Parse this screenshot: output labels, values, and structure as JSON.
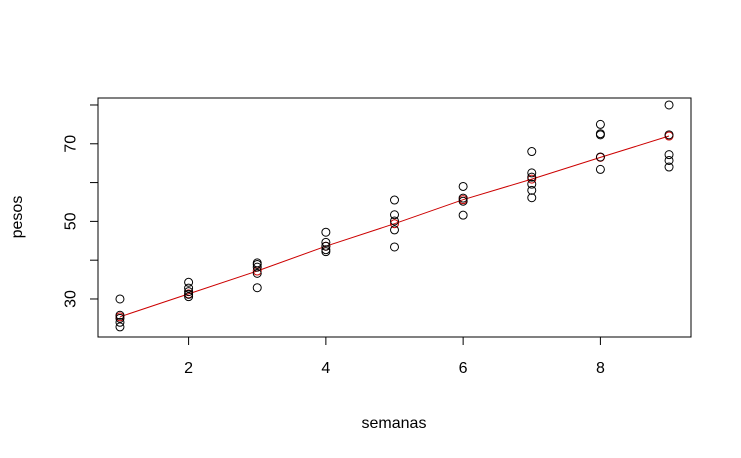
{
  "chart_data": {
    "type": "scatter",
    "title": "",
    "xlabel": "semanas",
    "ylabel": "pesos",
    "xlim": [
      0.68,
      9.32
    ],
    "ylim": [
      20.2,
      81.8
    ],
    "x_ticks": [
      2,
      4,
      6,
      8
    ],
    "y_ticks": [
      30,
      50,
      70
    ],
    "y_minor_ticks": [
      40,
      60,
      80
    ],
    "grid": false,
    "legend": "none",
    "colors": {
      "observed": "#000000",
      "fitted": "#cc0000"
    },
    "series": [
      {
        "kind": "observed",
        "points": [
          [
            1,
            30.0
          ],
          [
            1,
            25.8
          ],
          [
            1,
            25.0
          ],
          [
            1,
            24.0
          ],
          [
            1,
            22.8
          ],
          [
            2,
            34.3
          ],
          [
            2,
            32.8
          ],
          [
            2,
            31.9
          ],
          [
            2,
            31.2
          ],
          [
            2,
            30.6
          ],
          [
            3,
            39.3
          ],
          [
            3,
            38.9
          ],
          [
            3,
            38.2
          ],
          [
            3,
            36.6
          ],
          [
            3,
            32.9
          ],
          [
            4,
            47.2
          ],
          [
            4,
            44.6
          ],
          [
            4,
            43.6
          ],
          [
            4,
            42.7
          ],
          [
            4,
            42.2
          ],
          [
            5,
            55.5
          ],
          [
            5,
            51.7
          ],
          [
            5,
            50.1
          ],
          [
            5,
            47.8
          ],
          [
            5,
            43.4
          ],
          [
            6,
            59.0
          ],
          [
            6,
            56.0
          ],
          [
            6,
            55.2
          ],
          [
            6,
            51.6
          ],
          [
            7,
            68.0
          ],
          [
            7,
            62.5
          ],
          [
            7,
            61.4
          ],
          [
            7,
            59.6
          ],
          [
            7,
            58.0
          ],
          [
            7,
            56.1
          ],
          [
            8,
            75.0
          ],
          [
            8,
            72.6
          ],
          [
            8,
            72.3
          ],
          [
            8,
            66.6
          ],
          [
            8,
            63.4
          ],
          [
            9,
            80.0
          ],
          [
            9,
            72.3
          ],
          [
            9,
            67.2
          ],
          [
            9,
            65.7
          ],
          [
            9,
            64.0
          ]
        ]
      },
      {
        "kind": "fitted",
        "x": [
          1,
          2,
          3,
          4,
          5,
          6,
          7,
          8,
          9
        ],
        "y": [
          25.4,
          31.3,
          37.2,
          43.6,
          49.4,
          55.6,
          60.9,
          66.5,
          72.0
        ]
      }
    ]
  }
}
